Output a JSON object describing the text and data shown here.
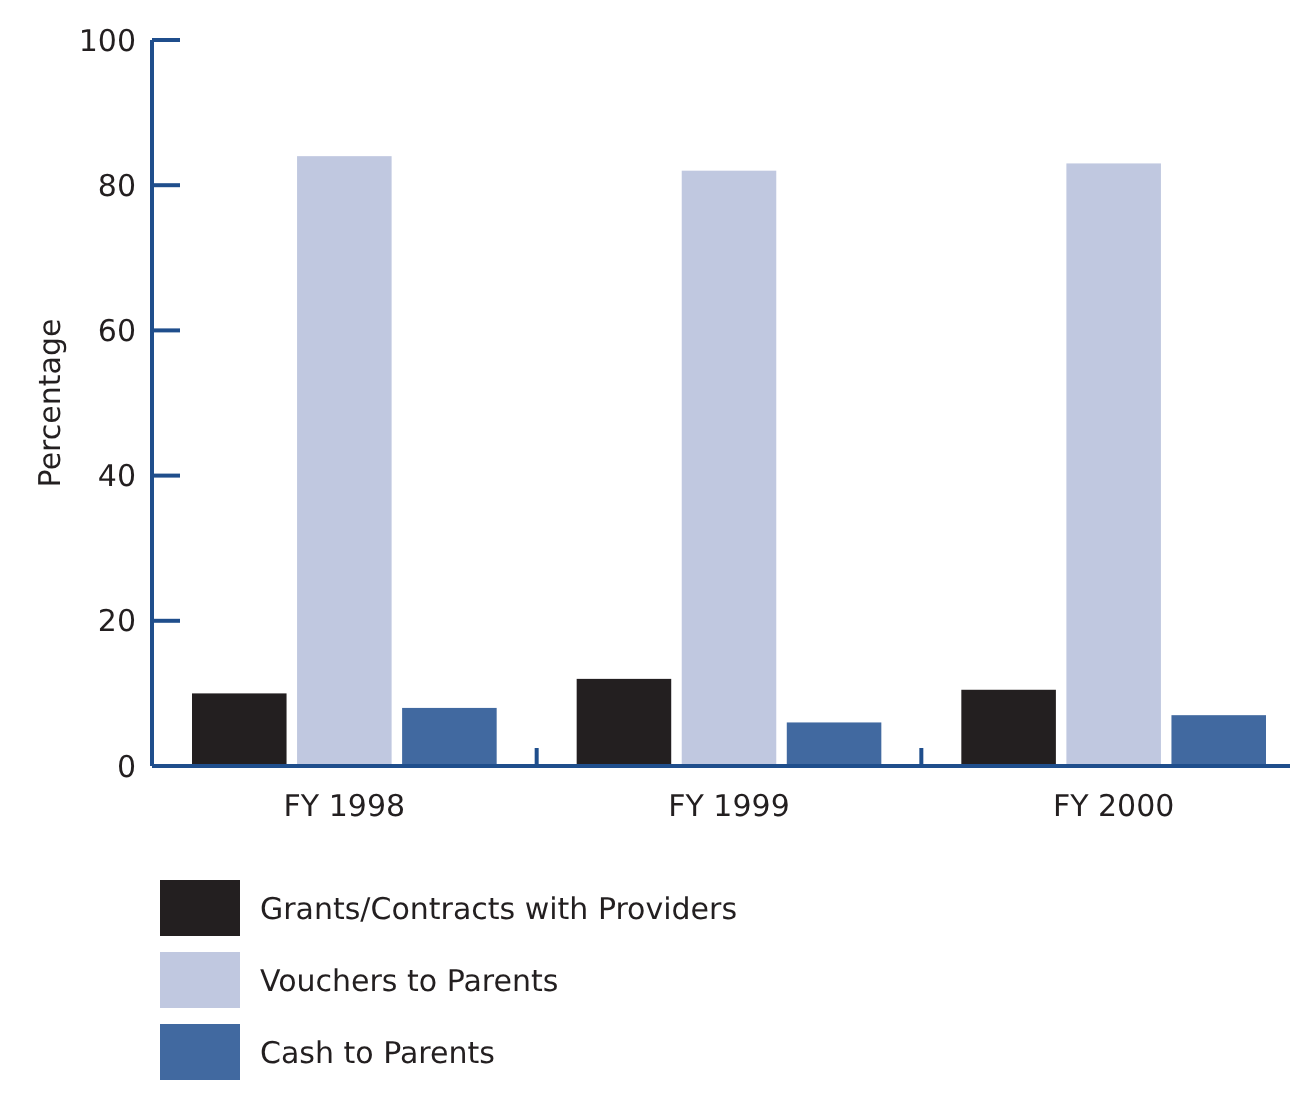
{
  "chart_data": {
    "type": "bar",
    "ylabel": "Percentage",
    "categories": [
      "FY 1998",
      "FY 1999",
      "FY 2000"
    ],
    "series": [
      {
        "name": "Grants/Contracts with Providers",
        "color": "#231f20",
        "values": [
          10,
          12,
          10.5
        ]
      },
      {
        "name": "Vouchers to Parents",
        "color": "#c0c8e0",
        "values": [
          84,
          82,
          83
        ]
      },
      {
        "name": "Cash to Parents",
        "color": "#4169a0",
        "values": [
          8,
          6,
          7
        ]
      }
    ],
    "ylim": [
      0,
      100
    ],
    "yticks": [
      0,
      20,
      40,
      60,
      80,
      100
    ],
    "grid": false,
    "legend": "bottom left"
  }
}
